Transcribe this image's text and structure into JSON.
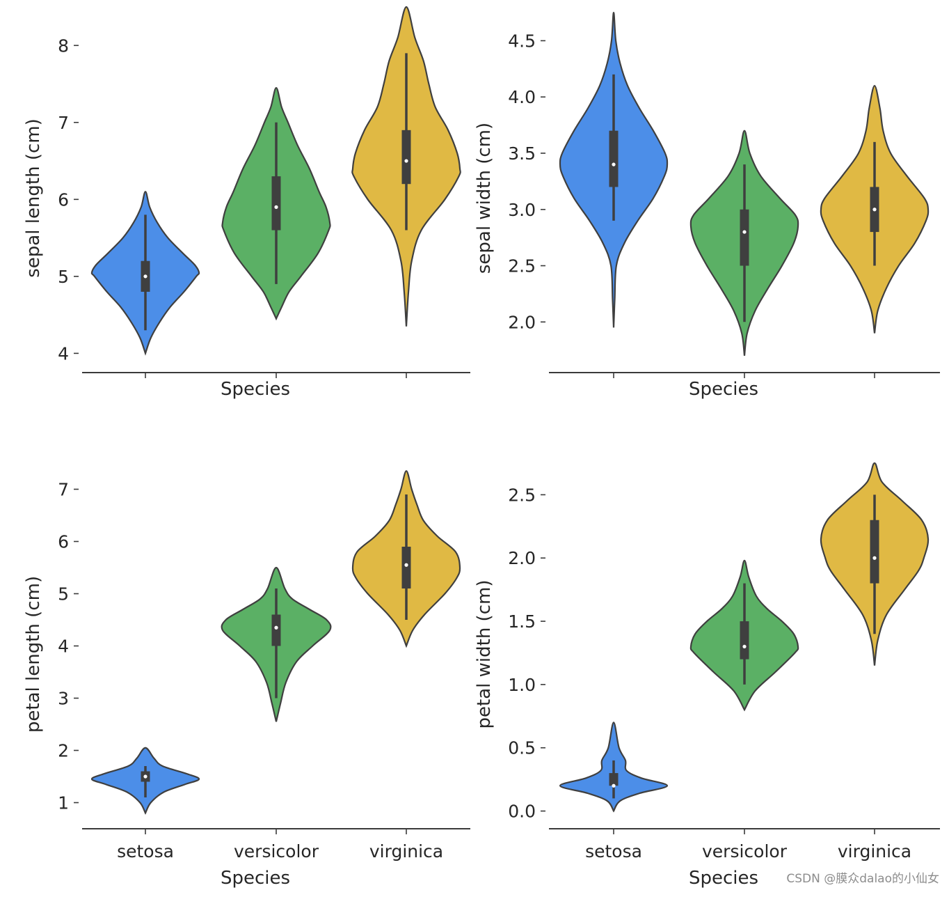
{
  "chart_data": [
    {
      "type": "violin",
      "xlabel": "Species",
      "ylabel": "sepal length (cm)",
      "categories": [],
      "yticks": [
        4,
        5,
        6,
        7,
        8
      ],
      "ytick_labels": [
        "4",
        "5",
        "6",
        "7",
        "8"
      ],
      "ylim": [
        3.75,
        8.5
      ],
      "series": [
        {
          "category": "setosa",
          "min": 4.3,
          "q1": 4.8,
          "median": 5.0,
          "q3": 5.2,
          "max": 5.8,
          "kde_low": 4.0,
          "kde_high": 6.1,
          "density": [
            [
              4.0,
              0
            ],
            [
              4.2,
              0.1
            ],
            [
              4.4,
              0.26
            ],
            [
              4.6,
              0.46
            ],
            [
              4.8,
              0.72
            ],
            [
              5.0,
              0.95
            ],
            [
              5.05,
              1.0
            ],
            [
              5.15,
              0.92
            ],
            [
              5.3,
              0.7
            ],
            [
              5.5,
              0.42
            ],
            [
              5.7,
              0.22
            ],
            [
              5.9,
              0.08
            ],
            [
              6.1,
              0
            ]
          ]
        },
        {
          "category": "versicolor",
          "min": 4.9,
          "q1": 5.6,
          "median": 5.9,
          "q3": 6.3,
          "max": 7.0,
          "kde_low": 4.45,
          "kde_high": 7.45,
          "density": [
            [
              4.45,
              0
            ],
            [
              4.6,
              0.1
            ],
            [
              4.8,
              0.24
            ],
            [
              5.0,
              0.46
            ],
            [
              5.3,
              0.78
            ],
            [
              5.6,
              0.98
            ],
            [
              5.7,
              1.0
            ],
            [
              5.9,
              0.93
            ],
            [
              6.1,
              0.8
            ],
            [
              6.4,
              0.62
            ],
            [
              6.7,
              0.4
            ],
            [
              7.0,
              0.22
            ],
            [
              7.2,
              0.1
            ],
            [
              7.45,
              0
            ]
          ]
        },
        {
          "category": "virginica",
          "min": 5.6,
          "q1": 6.2,
          "median": 6.5,
          "q3": 6.9,
          "max": 7.9,
          "kde_low": 4.35,
          "kde_high": 8.5,
          "density": [
            [
              4.35,
              0
            ],
            [
              4.8,
              0.04
            ],
            [
              5.2,
              0.1
            ],
            [
              5.6,
              0.28
            ],
            [
              6.0,
              0.72
            ],
            [
              6.3,
              0.98
            ],
            [
              6.4,
              1.0
            ],
            [
              6.6,
              0.95
            ],
            [
              6.9,
              0.78
            ],
            [
              7.2,
              0.54
            ],
            [
              7.5,
              0.42
            ],
            [
              7.8,
              0.32
            ],
            [
              8.1,
              0.16
            ],
            [
              8.5,
              0
            ]
          ]
        }
      ]
    },
    {
      "type": "violin",
      "xlabel": "Species",
      "ylabel": "sepal width (cm)",
      "categories": [],
      "yticks": [
        2.0,
        2.5,
        3.0,
        3.5,
        4.0,
        4.5
      ],
      "ytick_labels": [
        "2.0",
        "2.5",
        "3.0",
        "3.5",
        "4.0",
        "4.5"
      ],
      "ylim": [
        1.55,
        4.8
      ],
      "series": [
        {
          "category": "setosa",
          "min": 2.9,
          "q1": 3.2,
          "median": 3.4,
          "q3": 3.7,
          "max": 4.2,
          "kde_low": 1.95,
          "kde_high": 4.75,
          "density": [
            [
              1.95,
              0
            ],
            [
              2.2,
              0.02
            ],
            [
              2.5,
              0.05
            ],
            [
              2.7,
              0.2
            ],
            [
              2.9,
              0.45
            ],
            [
              3.1,
              0.74
            ],
            [
              3.3,
              0.95
            ],
            [
              3.4,
              1.0
            ],
            [
              3.5,
              0.96
            ],
            [
              3.7,
              0.74
            ],
            [
              3.9,
              0.48
            ],
            [
              4.1,
              0.26
            ],
            [
              4.3,
              0.12
            ],
            [
              4.5,
              0.04
            ],
            [
              4.75,
              0
            ]
          ]
        },
        {
          "category": "versicolor",
          "min": 2.0,
          "q1": 2.5,
          "median": 2.8,
          "q3": 3.0,
          "max": 3.4,
          "kde_low": 1.7,
          "kde_high": 3.7,
          "density": [
            [
              1.7,
              0
            ],
            [
              1.9,
              0.05
            ],
            [
              2.1,
              0.2
            ],
            [
              2.3,
              0.44
            ],
            [
              2.5,
              0.7
            ],
            [
              2.7,
              0.92
            ],
            [
              2.85,
              1.0
            ],
            [
              2.95,
              0.95
            ],
            [
              3.1,
              0.66
            ],
            [
              3.3,
              0.3
            ],
            [
              3.5,
              0.1
            ],
            [
              3.7,
              0
            ]
          ]
        },
        {
          "category": "virginica",
          "min": 2.5,
          "q1": 2.8,
          "median": 3.0,
          "q3": 3.2,
          "max": 3.6,
          "kde_low": 1.9,
          "kde_high": 4.1,
          "density": [
            [
              1.9,
              0
            ],
            [
              2.1,
              0.06
            ],
            [
              2.3,
              0.22
            ],
            [
              2.5,
              0.45
            ],
            [
              2.7,
              0.75
            ],
            [
              2.9,
              0.96
            ],
            [
              3.0,
              1.0
            ],
            [
              3.1,
              0.93
            ],
            [
              3.3,
              0.6
            ],
            [
              3.5,
              0.3
            ],
            [
              3.7,
              0.16
            ],
            [
              3.9,
              0.1
            ],
            [
              4.1,
              0
            ]
          ]
        }
      ]
    },
    {
      "type": "violin",
      "xlabel": "Species",
      "ylabel": "petal length (cm)",
      "categories": [
        "setosa",
        "versicolor",
        "virginica"
      ],
      "yticks": [
        1,
        2,
        3,
        4,
        5,
        6,
        7
      ],
      "ytick_labels": [
        "1",
        "2",
        "3",
        "4",
        "5",
        "6",
        "7"
      ],
      "ylim": [
        0.5,
        7.5
      ],
      "series": [
        {
          "category": "setosa",
          "min": 1.1,
          "q1": 1.4,
          "median": 1.5,
          "q3": 1.6,
          "max": 1.7,
          "kde_low": 0.8,
          "kde_high": 2.05,
          "density": [
            [
              0.8,
              0
            ],
            [
              1.0,
              0.1
            ],
            [
              1.2,
              0.34
            ],
            [
              1.35,
              0.74
            ],
            [
              1.45,
              1.0
            ],
            [
              1.55,
              0.78
            ],
            [
              1.7,
              0.32
            ],
            [
              1.85,
              0.16
            ],
            [
              2.05,
              0
            ]
          ]
        },
        {
          "category": "versicolor",
          "min": 3.0,
          "q1": 4.0,
          "median": 4.35,
          "q3": 4.6,
          "max": 5.1,
          "kde_low": 2.55,
          "kde_high": 5.5,
          "density": [
            [
              2.55,
              0
            ],
            [
              2.9,
              0.08
            ],
            [
              3.3,
              0.18
            ],
            [
              3.7,
              0.38
            ],
            [
              4.0,
              0.68
            ],
            [
              4.3,
              1.0
            ],
            [
              4.5,
              0.94
            ],
            [
              4.7,
              0.62
            ],
            [
              4.9,
              0.3
            ],
            [
              5.1,
              0.16
            ],
            [
              5.5,
              0
            ]
          ]
        },
        {
          "category": "virginica",
          "min": 4.5,
          "q1": 5.1,
          "median": 5.55,
          "q3": 5.9,
          "max": 6.9,
          "kde_low": 4.0,
          "kde_high": 7.35,
          "density": [
            [
              4.0,
              0
            ],
            [
              4.3,
              0.12
            ],
            [
              4.6,
              0.34
            ],
            [
              5.0,
              0.72
            ],
            [
              5.3,
              0.94
            ],
            [
              5.5,
              1.0
            ],
            [
              5.8,
              0.92
            ],
            [
              6.1,
              0.58
            ],
            [
              6.4,
              0.32
            ],
            [
              6.7,
              0.2
            ],
            [
              7.0,
              0.1
            ],
            [
              7.35,
              0
            ]
          ]
        }
      ]
    },
    {
      "type": "violin",
      "xlabel": "Species",
      "ylabel": "petal width (cm)",
      "categories": [
        "setosa",
        "versicolor",
        "virginica"
      ],
      "yticks": [
        0.0,
        0.5,
        1.0,
        1.5,
        2.0,
        2.5
      ],
      "ytick_labels": [
        "0.0",
        "0.5",
        "1.0",
        "1.5",
        "2.0",
        "2.5"
      ],
      "ylim": [
        -0.14,
        2.75
      ],
      "series": [
        {
          "category": "setosa",
          "min": 0.1,
          "q1": 0.2,
          "median": 0.2,
          "q3": 0.3,
          "max": 0.4,
          "kde_low": 0.0,
          "kde_high": 0.7,
          "density": [
            [
              0.0,
              0
            ],
            [
              0.08,
              0.12
            ],
            [
              0.14,
              0.48
            ],
            [
              0.2,
              1.0
            ],
            [
              0.26,
              0.52
            ],
            [
              0.32,
              0.24
            ],
            [
              0.4,
              0.22
            ],
            [
              0.5,
              0.1
            ],
            [
              0.7,
              0
            ]
          ]
        },
        {
          "category": "versicolor",
          "min": 1.0,
          "q1": 1.2,
          "median": 1.3,
          "q3": 1.5,
          "max": 1.8,
          "kde_low": 0.8,
          "kde_high": 1.98,
          "density": [
            [
              0.8,
              0
            ],
            [
              0.95,
              0.2
            ],
            [
              1.1,
              0.58
            ],
            [
              1.25,
              0.94
            ],
            [
              1.3,
              1.0
            ],
            [
              1.4,
              0.92
            ],
            [
              1.5,
              0.7
            ],
            [
              1.6,
              0.42
            ],
            [
              1.7,
              0.22
            ],
            [
              1.85,
              0.08
            ],
            [
              1.98,
              0
            ]
          ]
        },
        {
          "category": "virginica",
          "min": 1.4,
          "q1": 1.8,
          "median": 2.0,
          "q3": 2.3,
          "max": 2.5,
          "kde_low": 1.15,
          "kde_high": 2.75,
          "density": [
            [
              1.15,
              0
            ],
            [
              1.35,
              0.06
            ],
            [
              1.55,
              0.22
            ],
            [
              1.75,
              0.56
            ],
            [
              1.9,
              0.82
            ],
            [
              2.0,
              0.92
            ],
            [
              2.15,
              1.0
            ],
            [
              2.3,
              0.88
            ],
            [
              2.45,
              0.52
            ],
            [
              2.6,
              0.14
            ],
            [
              2.75,
              0
            ]
          ]
        }
      ]
    }
  ],
  "colors": {
    "setosa": "#4c8ee8",
    "versicolor": "#5bb065",
    "virginica": "#e0b944",
    "outline": "#3f3f3f",
    "box": "#3f3f3f"
  },
  "watermark": "CSDN @膜众dalao的小仙女"
}
